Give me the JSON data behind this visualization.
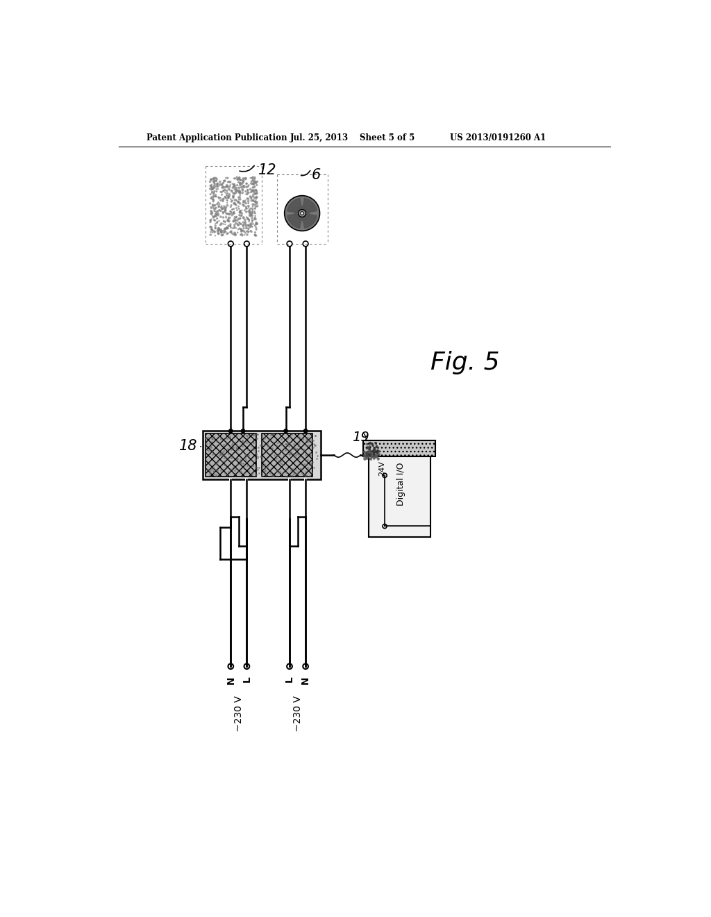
{
  "bg_color": "#ffffff",
  "header_text": "Patent Application Publication",
  "header_date": "Jul. 25, 2013",
  "header_sheet": "Sheet 5 of 5",
  "header_patent": "US 2013/0191260 A1",
  "fig_label": "Fig. 5",
  "label_12": "12",
  "label_6": "6",
  "label_18": "18",
  "label_19": "19",
  "bottom_voltage1": "~230 V",
  "bottom_voltage2": "~230 V",
  "digital_label": "Digital I/O",
  "voltage_24": "24V",
  "lw": 1.8
}
